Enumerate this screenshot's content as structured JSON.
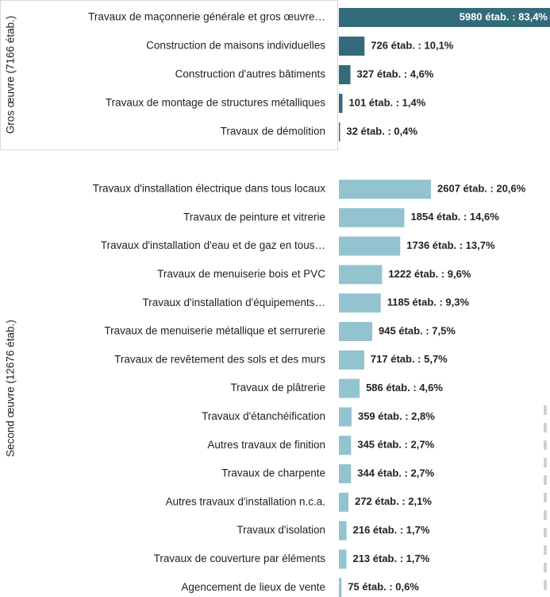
{
  "chart_data": {
    "type": "bar",
    "orientation": "horizontal",
    "xlim": [
      0,
      6000
    ],
    "groups": [
      {
        "name": "Gros œuvre (7166 étab.)",
        "color": "#336b7a",
        "categories": [
          "Travaux de maçonnerie générale et gros œuvre…",
          "Construction de maisons individuelles",
          "Construction d'autres bâtiments",
          "Travaux de montage de structures métalliques",
          "Travaux de démolition"
        ],
        "values": [
          5980,
          726,
          327,
          101,
          32
        ],
        "value_labels": [
          "5980 étab. : 83,4%",
          "726 étab. : 10,1%",
          "327 étab. : 4,6%",
          "101 étab. : 1,4%",
          "32 étab. : 0,4%"
        ]
      },
      {
        "name": "Second œuvre (12676 étab.)",
        "color": "#93c3cf",
        "categories": [
          "Travaux d'installation électrique dans tous locaux",
          "Travaux de peinture et vitrerie",
          "Travaux d'installation d'eau et de gaz en tous…",
          "Travaux de menuiserie bois et PVC",
          "Travaux d'installation d'équipements…",
          "Travaux de menuiserie métallique et serrurerie",
          "Travaux de revêtement des sols et des murs",
          "Travaux de plâtrerie",
          "Travaux d'étanchéification",
          "Autres travaux de finition",
          "Travaux de charpente",
          "Autres travaux d'installation n.c.a.",
          "Travaux d'isolation",
          "Travaux de couverture par éléments",
          "Agencement de lieux de vente"
        ],
        "values": [
          2607,
          1854,
          1736,
          1222,
          1185,
          945,
          717,
          586,
          359,
          345,
          344,
          272,
          216,
          213,
          75
        ],
        "value_labels": [
          "2607 étab. : 20,6%",
          "1854 étab. : 14,6%",
          "1736 étab. : 13,7%",
          "1222 étab. : 9,6%",
          "1185 étab. : 9,3%",
          "945 étab. : 7,5%",
          "717 étab. : 5,7%",
          "586 étab. : 4,6%",
          "359 étab. : 2,8%",
          "345 étab. : 2,7%",
          "344 étab. : 2,7%",
          "272 étab. : 2,1%",
          "216 étab. : 1,7%",
          "213 étab. : 1,7%",
          "75 étab. : 0,6%"
        ]
      }
    ]
  }
}
